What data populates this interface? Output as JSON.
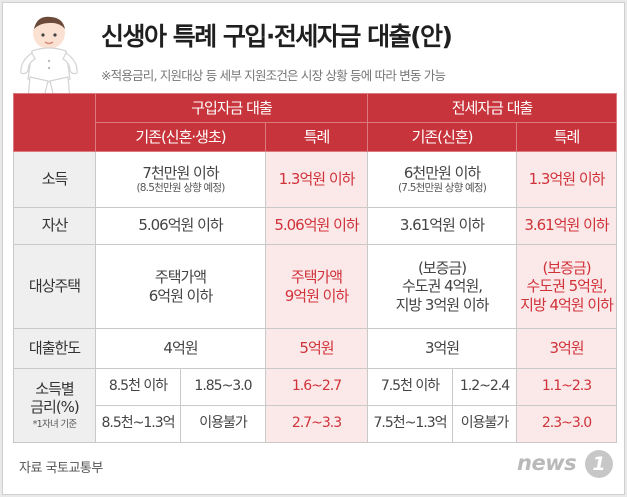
{
  "title": "신생아 특례 구입·전세자금 대출(안)",
  "note": "※적용금리, 지원대상 등 세부 지원조건은 시장 상황 등에 따라 변동 가능",
  "table": {
    "purchase_header": "구입자금 대출",
    "lease_header": "전세자금 대출",
    "purchase_existing": "기존(신혼·생초)",
    "purchase_special": "특례",
    "lease_existing": "기존(신혼)",
    "lease_special": "특례",
    "rows": {
      "income": {
        "label": "소득",
        "p_exist": "7천만원 이하",
        "p_exist_note": "(8.5천만원 상향 예정)",
        "p_special": "1.3억원 이하",
        "l_exist": "6천만원 이하",
        "l_exist_note": "(7.5천만원 상향 예정)",
        "l_special": "1.3억원 이하"
      },
      "asset": {
        "label": "자산",
        "p_exist": "5.06억원 이하",
        "p_special": "5.06억원 이하",
        "l_exist": "3.61억원 이하",
        "l_special": "3.61억원 이하"
      },
      "housing": {
        "label": "대상주택",
        "p_exist_1": "주택가액",
        "p_exist_2": "6억원 이하",
        "p_special_1": "주택가액",
        "p_special_2": "9억원 이하",
        "l_exist_1": "(보증금)",
        "l_exist_2": "수도권 4억원,",
        "l_exist_3": "지방 3억원 이하",
        "l_special_1": "(보증금)",
        "l_special_2": "수도권 5억원,",
        "l_special_3": "지방 4억원 이하"
      },
      "limit": {
        "label": "대출한도",
        "p_exist": "4억원",
        "p_special": "5억원",
        "l_exist": "3억원",
        "l_special": "3억원"
      },
      "rate": {
        "label_1": "소득별",
        "label_2": "금리(%)",
        "label_note": "*1자녀 기준",
        "r1": {
          "p_band": "8.5천 이하",
          "p_rate": "1.85~3.0",
          "p_special": "1.6~2.7",
          "l_band": "7.5천 이하",
          "l_rate": "1.2~2.4",
          "l_special": "1.1~2.3"
        },
        "r2": {
          "p_band": "8.5천~1.3억",
          "p_rate": "이용불가",
          "p_special": "2.7~3.3",
          "l_band": "7.5천~1.3억",
          "l_rate": "이용불가",
          "l_special": "2.3~3.0"
        }
      }
    }
  },
  "source": "자료  국토교통부",
  "logo": {
    "text": "news",
    "mark": "1"
  },
  "colors": {
    "header_red": "#c8343b",
    "special_text": "#d0323a",
    "special_bg": "#fbe9e9",
    "rowhead_bg": "#efefef"
  },
  "icons": [
    "baby-illustration"
  ]
}
